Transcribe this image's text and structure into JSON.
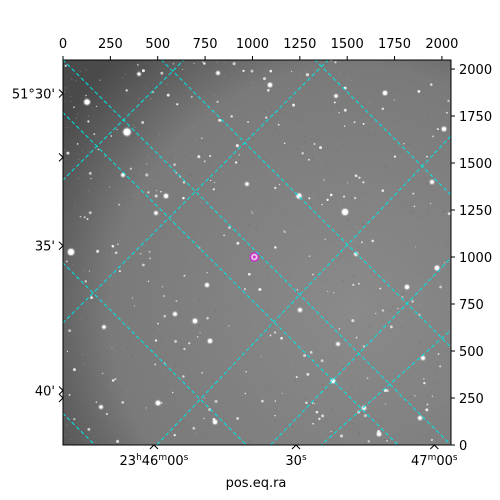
{
  "chart_data": {
    "type": "sky-image",
    "xlabel": "pos.eq.ra",
    "top_axis": {
      "label": "",
      "ticks": [
        0,
        250,
        500,
        750,
        1000,
        1250,
        1500,
        1750,
        2000
      ],
      "tick_labels": [
        "0",
        "250",
        "500",
        "750",
        "1000",
        "1250",
        "1500",
        "1750",
        "2000"
      ],
      "range": [
        0,
        2048
      ]
    },
    "right_axis": {
      "label": "",
      "ticks": [
        0,
        250,
        500,
        750,
        1000,
        1250,
        1500,
        1750,
        2000
      ],
      "tick_labels": [
        "0",
        "250",
        "500",
        "750",
        "1000",
        "1250",
        "1500",
        "1750",
        "2000"
      ],
      "range": [
        0,
        2048
      ]
    },
    "bottom_world_ticks": [
      {
        "label_parts": [
          "23",
          "h",
          "46",
          "m",
          "00",
          "s"
        ],
        "x": 480
      },
      {
        "label_parts": [
          "30",
          "s"
        ],
        "x": 1230
      },
      {
        "label_parts": [
          "47",
          "m",
          "00",
          "s"
        ],
        "x": 1960
      }
    ],
    "left_world_ticks": [
      {
        "label": "51°30'",
        "y": 1870
      },
      {
        "label": "35'",
        "y": 1060
      },
      {
        "label": "40'",
        "y": 290
      }
    ],
    "grid": {
      "on": true,
      "color": "#00e5e5",
      "ra_lines": [
        [
          -100,
          1868,
          1868,
          -100
        ],
        [
          -100,
          1068,
          1068,
          -100
        ],
        [
          420,
          2148,
          2148,
          420
        ],
        [
          1230,
          2148,
          2148,
          1230
        ],
        [
          -100,
          268,
          268,
          -100
        ]
      ],
      "dec_lines": [
        [
          -100,
          1310,
          738,
          2148
        ],
        [
          -100,
          2148,
          2148,
          -100
        ],
        [
          -100,
          550,
          1500,
          2148
        ],
        [
          1000,
          -100,
          2148,
          1100
        ],
        [
          400,
          -100,
          2148,
          1750
        ],
        [
          1250,
          -100,
          2148,
          700
        ]
      ]
    },
    "marker": {
      "x": 1010,
      "y": 1000,
      "color": "#cc33cc"
    },
    "colors": {
      "image_background": "#7f7f7f",
      "grid": "#00e5e5",
      "marker": "#cc33cc"
    }
  }
}
